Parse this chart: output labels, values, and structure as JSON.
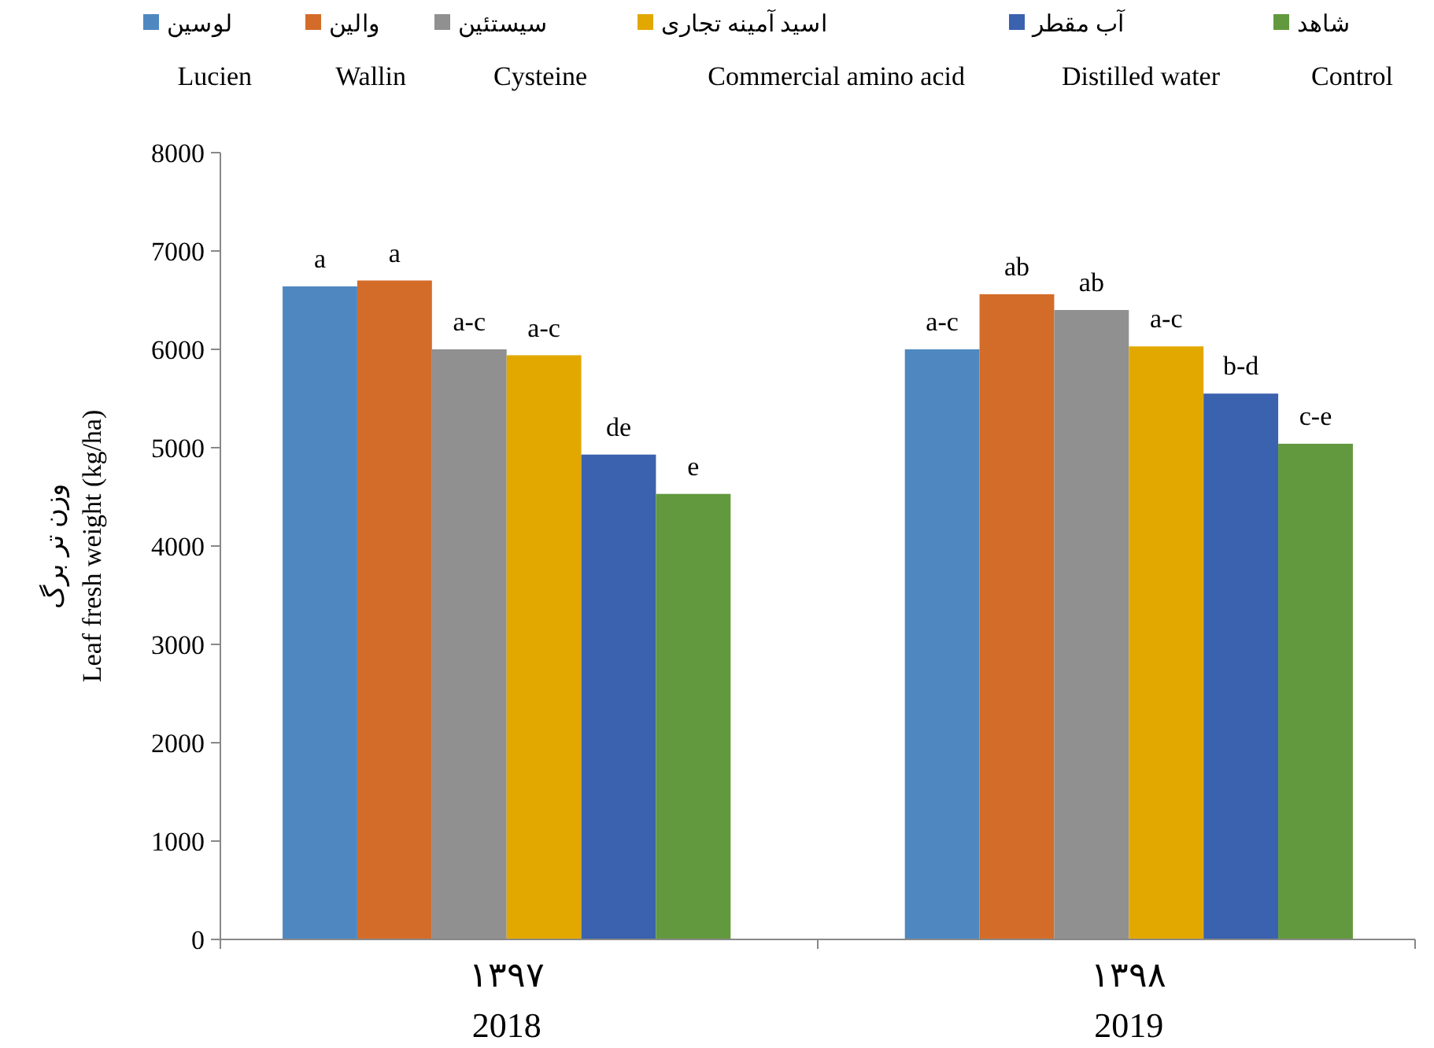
{
  "chart_data": {
    "type": "bar",
    "ylabel": "وزن تر برگ\nLeaf fresh weight  (kg/ha)",
    "categories": [
      "۱۳۹۷\n2018",
      "۱۳۹۸\n2019"
    ],
    "series": [
      {
        "name": "لوسین\nLucien",
        "color": "#4f88c0",
        "values": [
          6640,
          6000
        ],
        "value_labels": [
          "a",
          "a-c"
        ]
      },
      {
        "name": "والین\nWallin",
        "color": "#d46c29",
        "values": [
          6700,
          6560
        ],
        "value_labels": [
          "a",
          "ab"
        ]
      },
      {
        "name": "سیستئین\nCysteine",
        "color": "#909090",
        "values": [
          6000,
          6400
        ],
        "value_labels": [
          "a-c",
          "ab"
        ]
      },
      {
        "name": "اسید آمینه تجاری\nCommercial amino acid",
        "color": "#e2a800",
        "values": [
          5940,
          6030
        ],
        "value_labels": [
          "a-c",
          "a-c"
        ]
      },
      {
        "name": "آب مقطر\nDistilled water",
        "color": "#3b62ae",
        "values": [
          4930,
          5550
        ],
        "value_labels": [
          "de",
          "b-d"
        ]
      },
      {
        "name": "شاهد\nControl",
        "color": "#62993e",
        "values": [
          4530,
          5040
        ],
        "value_labels": [
          "e",
          "c-e"
        ]
      }
    ],
    "ylim": [
      0,
      8000
    ],
    "yticks": [
      0,
      1000,
      2000,
      3000,
      4000,
      5000,
      6000,
      7000,
      8000
    ],
    "grid": false,
    "legend": "top"
  }
}
